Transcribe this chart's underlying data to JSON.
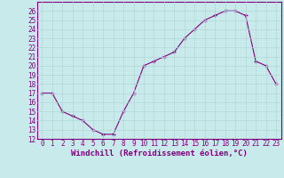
{
  "x": [
    0,
    1,
    2,
    3,
    4,
    5,
    6,
    7,
    8,
    9,
    10,
    11,
    12,
    13,
    14,
    15,
    16,
    17,
    18,
    19,
    20,
    21,
    22,
    23
  ],
  "y": [
    17,
    17,
    15,
    14.5,
    14,
    13,
    12.5,
    12.5,
    15,
    17,
    20,
    20.5,
    21,
    21.5,
    23,
    24,
    25,
    25.5,
    26,
    26,
    25.5,
    20.5,
    20,
    18
  ],
  "line_color": "#800080",
  "marker_color": "#800080",
  "bg_color": "#c8eaea",
  "grid_color": "#b0d8d8",
  "xlabel": "Windchill (Refroidissement éolien,°C)",
  "xlabel_color": "#800080",
  "tick_color": "#800080",
  "spine_color": "#800080",
  "ylim": [
    12,
    27
  ],
  "xlim": [
    -0.5,
    23.5
  ],
  "yticks": [
    12,
    13,
    14,
    15,
    16,
    17,
    18,
    19,
    20,
    21,
    22,
    23,
    24,
    25,
    26
  ],
  "xticks": [
    0,
    1,
    2,
    3,
    4,
    5,
    6,
    7,
    8,
    9,
    10,
    11,
    12,
    13,
    14,
    15,
    16,
    17,
    18,
    19,
    20,
    21,
    22,
    23
  ],
  "xtick_labels": [
    "0",
    "1",
    "2",
    "3",
    "4",
    "5",
    "6",
    "7",
    "8",
    "9",
    "10",
    "11",
    "12",
    "13",
    "14",
    "15",
    "16",
    "17",
    "18",
    "19",
    "20",
    "21",
    "22",
    "23"
  ],
  "ytick_labels": [
    "12",
    "13",
    "14",
    "15",
    "16",
    "17",
    "18",
    "19",
    "20",
    "21",
    "22",
    "23",
    "24",
    "25",
    "26"
  ],
  "tick_fontsize": 5.5,
  "xlabel_fontsize": 6.5
}
